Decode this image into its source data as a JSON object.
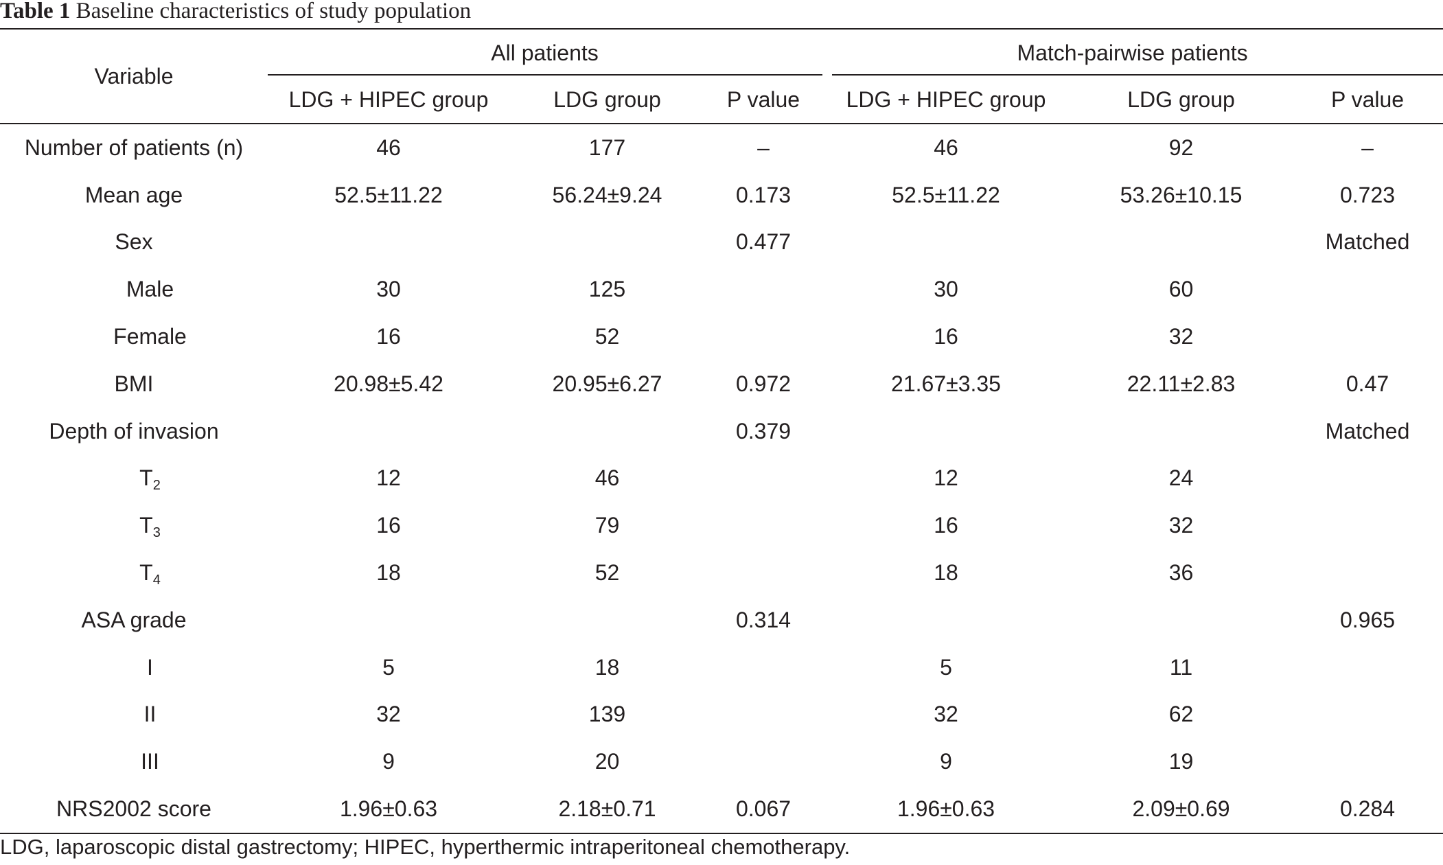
{
  "caption": {
    "label": "Table 1",
    "text": "Baseline characteristics of study population"
  },
  "header": {
    "variable": "Variable",
    "group_all": "All patients",
    "group_matched": "Match-pairwise patients",
    "columns": [
      "LDG + HIPEC group",
      "LDG group",
      "P value",
      "LDG + HIPEC group",
      "LDG group",
      "P value"
    ]
  },
  "rows": [
    {
      "label": "Number of patients (n)",
      "cells": [
        "46",
        "177",
        "–",
        "46",
        "92",
        "–"
      ]
    },
    {
      "label": "Mean age",
      "cells": [
        "52.5±11.22",
        "56.24±9.24",
        "0.173",
        "52.5±11.22",
        "53.26±10.15",
        "0.723"
      ]
    },
    {
      "label": "Sex",
      "cells": [
        "",
        "",
        "0.477",
        "",
        "",
        "Matched"
      ]
    },
    {
      "label": "Male",
      "cells": [
        "30",
        "125",
        "",
        "30",
        "60",
        ""
      ]
    },
    {
      "label": "Female",
      "cells": [
        "16",
        "52",
        "",
        "16",
        "32",
        ""
      ]
    },
    {
      "label": "BMI",
      "cells": [
        "20.98±5.42",
        "20.95±6.27",
        "0.972",
        "21.67±3.35",
        "22.11±2.83",
        "0.47"
      ]
    },
    {
      "label": "Depth of invasion",
      "cells": [
        "",
        "",
        "0.379",
        "",
        "",
        "Matched"
      ]
    },
    {
      "label": "T",
      "sub": "2",
      "cells": [
        "12",
        "46",
        "",
        "12",
        "24",
        ""
      ]
    },
    {
      "label": "T",
      "sub": "3",
      "cells": [
        "16",
        "79",
        "",
        "16",
        "32",
        ""
      ]
    },
    {
      "label": "T",
      "sub": "4",
      "cells": [
        "18",
        "52",
        "",
        "18",
        "36",
        ""
      ]
    },
    {
      "label": "ASA grade",
      "cells": [
        "",
        "",
        "0.314",
        "",
        "",
        "0.965"
      ]
    },
    {
      "label": "I",
      "cells": [
        "5",
        "18",
        "",
        "5",
        "11",
        ""
      ]
    },
    {
      "label": "II",
      "cells": [
        "32",
        "139",
        "",
        "32",
        "62",
        ""
      ]
    },
    {
      "label": "III",
      "cells": [
        "9",
        "20",
        "",
        "9",
        "19",
        ""
      ]
    },
    {
      "label": "NRS2002 score",
      "cells": [
        "1.96±0.63",
        "2.18±0.71",
        "0.067",
        "1.96±0.63",
        "2.09±0.69",
        "0.284"
      ]
    }
  ],
  "footnote": "LDG, laparoscopic distal gastrectomy; HIPEC, hyperthermic intraperitoneal chemotherapy."
}
